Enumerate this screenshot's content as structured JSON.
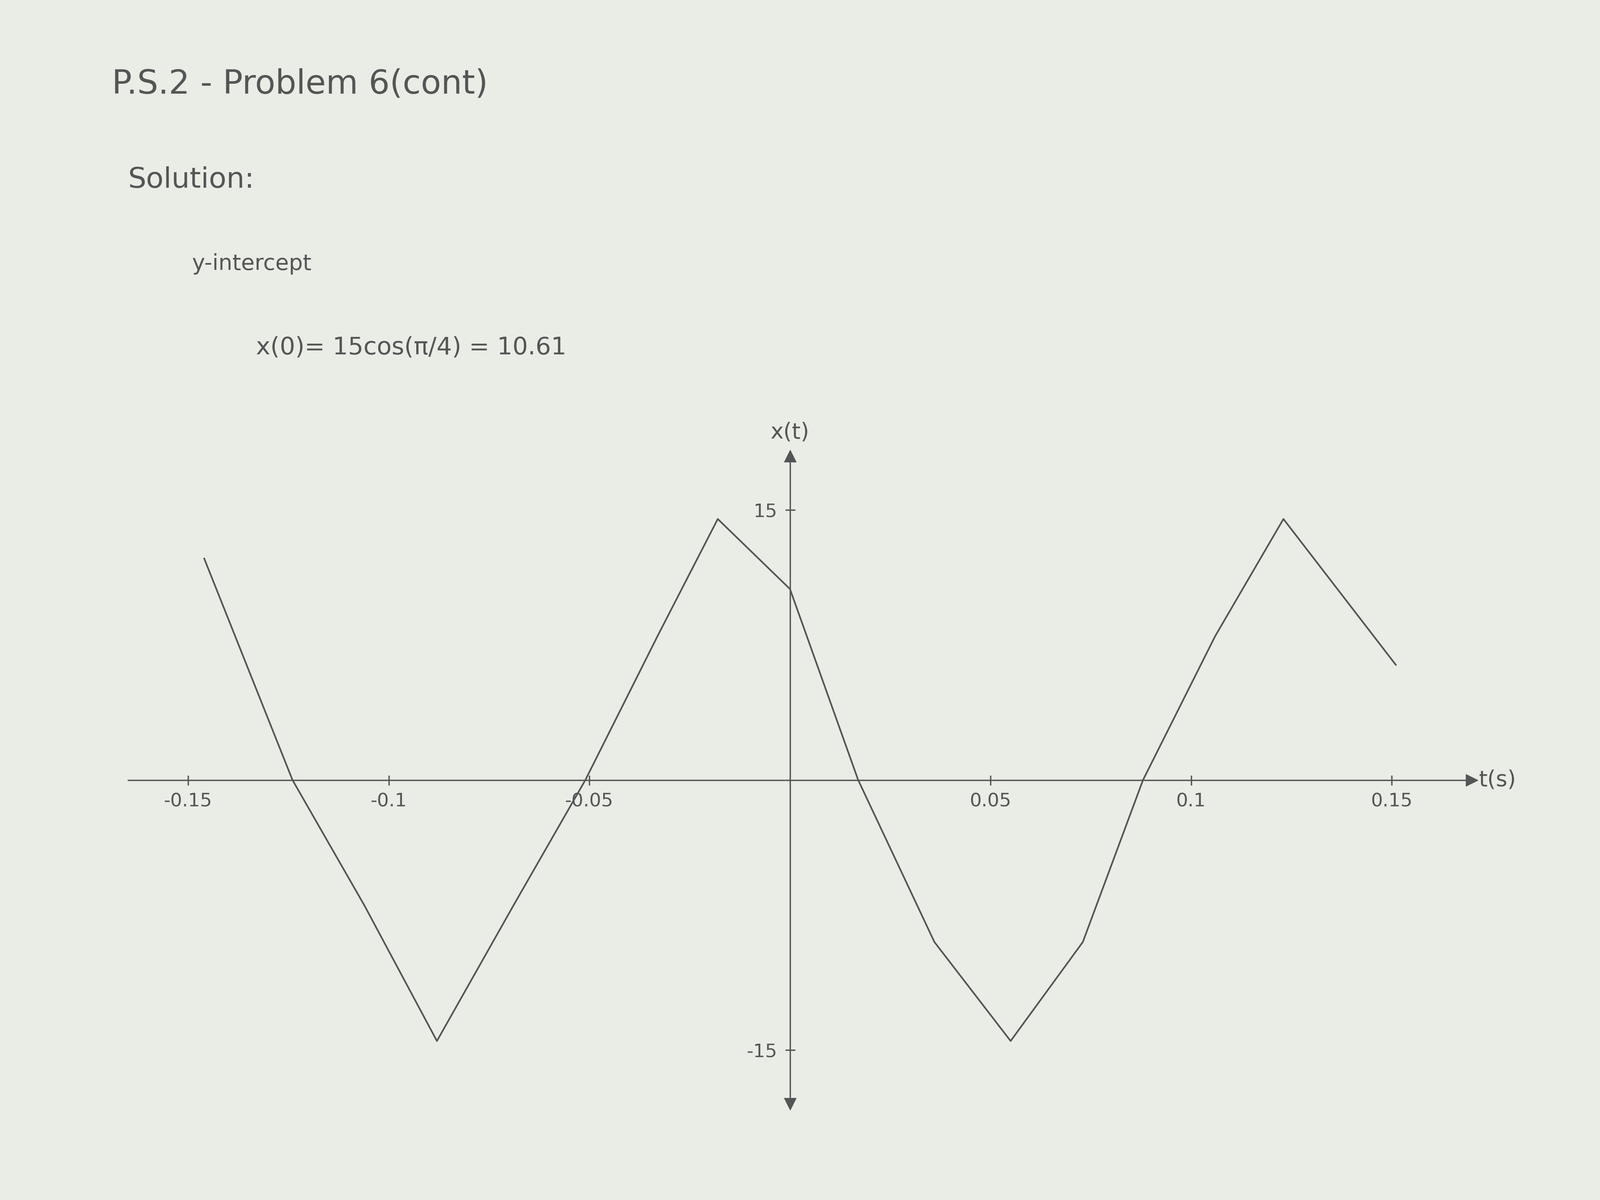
{
  "chart_data": {
    "type": "line",
    "title": "P.S.2 - Problem 6(cont)",
    "annotations": [
      "Solution:",
      "y-intercept",
      "x(0)= 15cos(π/4) = 10.61"
    ],
    "x_label": "t(s)",
    "y_label": "x(t)",
    "x": [
      -0.146,
      -0.124,
      -0.106,
      -0.088,
      -0.069,
      -0.051,
      -0.033,
      -0.018,
      0.0,
      0.017,
      0.036,
      0.055,
      0.073,
      0.088,
      0.106,
      0.123,
      0.151
    ],
    "values": [
      12.3,
      0,
      -7,
      -14.5,
      -7,
      0,
      8,
      14.5,
      10.61,
      0,
      -9,
      -14.5,
      -9,
      0,
      8,
      14.5,
      6.4
    ],
    "color": "#555555",
    "xlim": [
      -0.165,
      0.17
    ],
    "ylim": [
      -18,
      18
    ],
    "xticks": [
      -0.15,
      -0.1,
      -0.05,
      0.05,
      0.1,
      0.15
    ],
    "yticks": [
      -15,
      15
    ],
    "grid": false
  }
}
